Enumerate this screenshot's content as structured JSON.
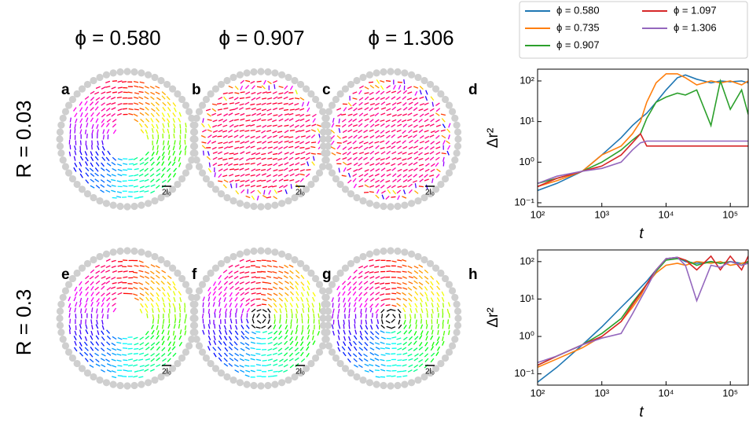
{
  "figure": {
    "columns": [
      "ϕ = 0.580",
      "ϕ = 0.907",
      "ϕ = 1.306"
    ],
    "rows": [
      "R = 0.03",
      "R = 0.3"
    ],
    "panels": [
      "a",
      "b",
      "c",
      "d",
      "e",
      "f",
      "g",
      "h"
    ],
    "scale_label": "2l₀"
  },
  "chart_data": [
    {
      "type": "line",
      "xlabel": "t",
      "ylabel": "Δr²",
      "xscale": "log",
      "yscale": "log",
      "legend": "above",
      "xlim": [
        100,
        190000
      ],
      "ylim": [
        0.08,
        195
      ],
      "xticks": [
        {
          "value": 100,
          "label": "10²"
        },
        {
          "value": 1000,
          "label": "10³"
        },
        {
          "value": 10000,
          "label": "10⁴"
        },
        {
          "value": 100000,
          "label": "10⁵"
        }
      ],
      "yticks": [
        {
          "value": 0.1,
          "label": "10⁻¹"
        },
        {
          "value": 1,
          "label": "10⁰"
        },
        {
          "value": 10,
          "label": "10¹"
        },
        {
          "value": 100,
          "label": "10²"
        }
      ],
      "x": [
        100,
        200,
        500,
        1000,
        2000,
        3000,
        4000,
        5000,
        7000,
        10000,
        15000,
        20000,
        30000,
        50000,
        70000,
        100000,
        150000,
        190000
      ],
      "series": [
        {
          "name": "ϕ = 0.580",
          "color": "#1f77b4",
          "values": [
            0.2,
            0.3,
            0.6,
            1.5,
            4,
            8,
            12,
            16,
            30,
            60,
            120,
            140,
            110,
            90,
            100,
            95,
            100,
            90
          ]
        },
        {
          "name": "ϕ = 0.735",
          "color": "#ff7f0e",
          "values": [
            0.25,
            0.35,
            0.6,
            1.5,
            2.5,
            5,
            10,
            30,
            90,
            150,
            150,
            120,
            80,
            100,
            90,
            100,
            80,
            100
          ]
        },
        {
          "name": "ϕ = 0.907",
          "color": "#2ca02c",
          "values": [
            0.3,
            0.4,
            0.6,
            1,
            2,
            3.5,
            5,
            12,
            30,
            40,
            50,
            45,
            60,
            8,
            100,
            20,
            60,
            15
          ]
        },
        {
          "name": "ϕ = 1.097",
          "color": "#d62728",
          "values": [
            0.25,
            0.4,
            0.6,
            0.8,
            1.5,
            3,
            5,
            2.5,
            2.5,
            2.5,
            2.5,
            2.5,
            2.5,
            2.5,
            2.5,
            2.5,
            2.5,
            2.5
          ]
        },
        {
          "name": "ϕ = 1.306",
          "color": "#9467bd",
          "values": [
            0.3,
            0.45,
            0.6,
            0.7,
            1,
            2,
            3,
            3.3,
            3.3,
            3.3,
            3.3,
            3.3,
            3.3,
            3.3,
            3.3,
            3.3,
            3.3,
            3.3
          ]
        }
      ]
    },
    {
      "type": "line",
      "xlabel": "t",
      "ylabel": "Δr²",
      "xscale": "log",
      "yscale": "log",
      "xlim": [
        100,
        190000
      ],
      "ylim": [
        0.05,
        205
      ],
      "xticks": [
        {
          "value": 100,
          "label": "10²"
        },
        {
          "value": 1000,
          "label": "10³"
        },
        {
          "value": 10000,
          "label": "10⁴"
        },
        {
          "value": 100000,
          "label": "10⁵"
        }
      ],
      "yticks": [
        {
          "value": 0.1,
          "label": "10⁻¹"
        },
        {
          "value": 1,
          "label": "10⁰"
        },
        {
          "value": 10,
          "label": "10¹"
        },
        {
          "value": 100,
          "label": "10²"
        }
      ],
      "x": [
        100,
        200,
        500,
        1000,
        2000,
        3000,
        4000,
        5000,
        7000,
        10000,
        15000,
        20000,
        30000,
        50000,
        70000,
        100000,
        150000,
        190000
      ],
      "series": [
        {
          "name": "ϕ = 0.580",
          "color": "#1f77b4",
          "values": [
            0.06,
            0.15,
            0.6,
            1.8,
            6,
            12,
            20,
            30,
            60,
            120,
            130,
            100,
            90,
            100,
            90,
            100,
            90,
            100
          ]
        },
        {
          "name": "ϕ = 0.735",
          "color": "#ff7f0e",
          "values": [
            0.15,
            0.25,
            0.5,
            1,
            2.5,
            6,
            12,
            25,
            50,
            80,
            90,
            80,
            100,
            90,
            100,
            80,
            90,
            100
          ]
        },
        {
          "name": "ϕ = 0.907",
          "color": "#2ca02c",
          "values": [
            0.17,
            0.3,
            0.6,
            1.2,
            3,
            8,
            15,
            25,
            55,
            110,
            120,
            110,
            80,
            100,
            90,
            100,
            80,
            100
          ]
        },
        {
          "name": "ϕ = 1.097",
          "color": "#d62728",
          "values": [
            0.17,
            0.3,
            0.6,
            1,
            2.5,
            7,
            14,
            25,
            60,
            120,
            130,
            110,
            60,
            140,
            60,
            140,
            60,
            140
          ]
        },
        {
          "name": "ϕ = 1.306",
          "color": "#9467bd",
          "values": [
            0.2,
            0.3,
            0.6,
            0.9,
            1.2,
            4,
            10,
            20,
            60,
            120,
            130,
            80,
            9,
            80,
            70,
            100,
            80,
            90
          ]
        }
      ]
    }
  ]
}
